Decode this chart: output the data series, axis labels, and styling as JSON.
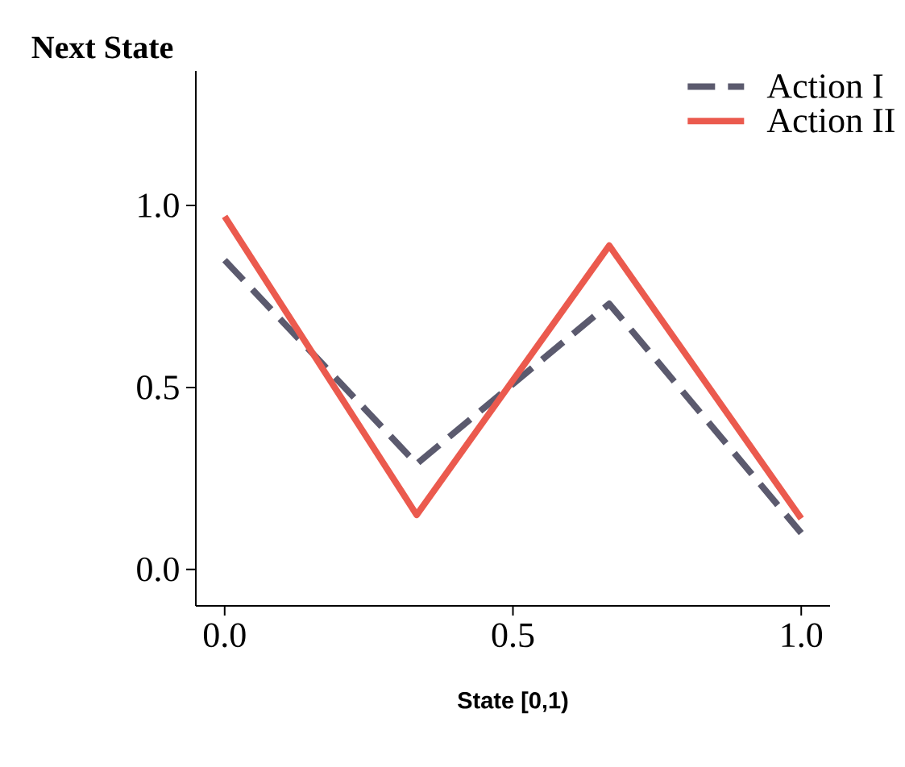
{
  "chart_data": {
    "type": "line",
    "title": "Next State",
    "xlabel": "State [0,1)",
    "x": [
      0,
      0.333,
      0.667,
      1
    ],
    "series": [
      {
        "name": "Action I",
        "color": "#5b5a6e",
        "line_style": "dashed",
        "values": [
          0.85,
          0.29,
          0.73,
          0.1
        ]
      },
      {
        "name": "Action II",
        "color": "#eb5a4e",
        "line_style": "solid",
        "values": [
          0.97,
          0.15,
          0.89,
          0.14
        ]
      }
    ],
    "xlim": [
      -0.05,
      1.05
    ],
    "ylim": [
      -0.1,
      1.37
    ],
    "xticks": [
      {
        "value": 0,
        "label": "0.0"
      },
      {
        "value": 0.5,
        "label": "0.5"
      },
      {
        "value": 1,
        "label": "1.0"
      }
    ],
    "yticks": [
      {
        "value": 0,
        "label": "0.0"
      },
      {
        "value": 0.5,
        "label": "0.5"
      },
      {
        "value": 1,
        "label": "1.0"
      }
    ],
    "grid": false,
    "legend": "top right",
    "marker": "none"
  }
}
